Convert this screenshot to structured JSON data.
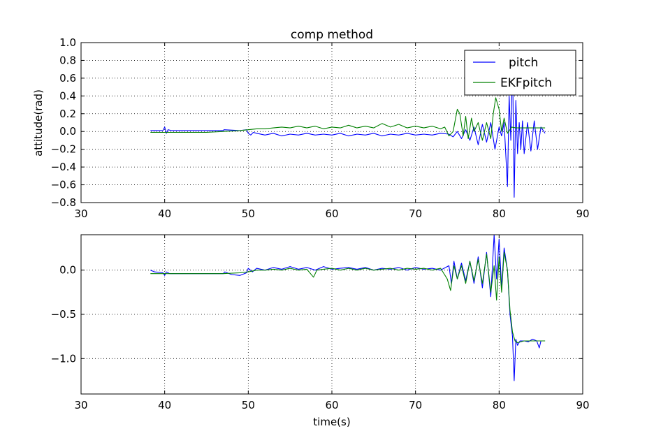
{
  "colors": {
    "pitch": "#0000ff",
    "ekf": "#008000",
    "grid": "#000000",
    "axes": "#000000"
  },
  "chart_data": [
    {
      "type": "line",
      "title": "comp method",
      "xlabel": "",
      "ylabel": "attitude(rad)",
      "xlim": [
        30,
        90
      ],
      "ylim": [
        -0.8,
        1.0
      ],
      "xticks": [
        30,
        40,
        50,
        60,
        70,
        80,
        90
      ],
      "xtick_labels": [
        "30",
        "40",
        "50",
        "60",
        "70",
        "80",
        "90"
      ],
      "yticks": [
        -0.8,
        -0.6,
        -0.4,
        -0.2,
        0.0,
        0.2,
        0.4,
        0.6,
        0.8,
        1.0
      ],
      "ytick_labels": [
        "−0.8",
        "−0.6",
        "−0.4",
        "−0.2",
        "0.0",
        "0.2",
        "0.4",
        "0.6",
        "0.8",
        "1.0"
      ],
      "grid": true,
      "legend": "top-right",
      "series": [
        {
          "name": "pitch",
          "color": "#0000ff",
          "x": [
            38.3,
            39.8,
            40.0,
            40.2,
            40.4,
            40.8,
            43.0,
            47.0,
            47.1,
            49.0,
            49.8,
            50.0,
            50.3,
            50.6,
            51.0,
            52.0,
            53.0,
            54.0,
            55.0,
            56.0,
            57.0,
            58.0,
            59.0,
            60.0,
            61.0,
            62.0,
            63.0,
            64.0,
            65.0,
            66.0,
            67.0,
            68.0,
            69.0,
            70.0,
            71.0,
            72.0,
            73.0,
            74.0,
            74.5,
            75.0,
            75.5,
            76.0,
            76.5,
            77.0,
            77.5,
            78.0,
            78.5,
            79.0,
            79.5,
            80.0,
            80.3,
            80.6,
            81.0,
            81.2,
            81.4,
            81.6,
            81.8,
            82.0,
            82.2,
            82.4,
            82.6,
            82.8,
            83.0,
            83.4,
            83.8,
            84.2,
            84.6,
            85.0,
            85.5
          ],
          "y": [
            0.01,
            0.01,
            0.05,
            -0.02,
            0.02,
            0.01,
            0.01,
            0.01,
            0.02,
            0.01,
            0.02,
            -0.02,
            -0.04,
            -0.01,
            -0.02,
            -0.04,
            -0.02,
            -0.05,
            -0.03,
            -0.04,
            -0.02,
            -0.04,
            -0.03,
            -0.04,
            -0.02,
            -0.05,
            -0.03,
            -0.04,
            -0.02,
            -0.05,
            -0.03,
            -0.04,
            -0.02,
            -0.04,
            -0.03,
            -0.04,
            -0.02,
            -0.03,
            -0.06,
            0.0,
            -0.08,
            0.02,
            -0.1,
            0.05,
            -0.15,
            0.08,
            -0.12,
            0.1,
            -0.2,
            0.05,
            -0.05,
            0.1,
            -0.62,
            0.4,
            -0.1,
            0.82,
            -0.74,
            0.35,
            -0.25,
            0.1,
            -0.2,
            0.12,
            -0.25,
            0.1,
            -0.22,
            0.12,
            -0.2,
            0.05,
            -0.02
          ]
        },
        {
          "name": "EKFpitch",
          "color": "#008000",
          "x": [
            38.3,
            40.0,
            45.0,
            47.0,
            49.0,
            50.0,
            51.0,
            52.0,
            53.0,
            54.0,
            55.0,
            56.0,
            57.0,
            58.0,
            59.0,
            60.0,
            61.0,
            62.0,
            63.0,
            64.0,
            65.0,
            66.0,
            67.0,
            68.0,
            69.0,
            70.0,
            71.0,
            72.0,
            73.0,
            73.5,
            74.0,
            74.5,
            75.0,
            75.3,
            75.7,
            76.0,
            76.3,
            76.7,
            77.0,
            77.5,
            78.0,
            78.5,
            79.0,
            79.3,
            79.6,
            80.0,
            80.3,
            80.6,
            81.0,
            81.5,
            82.0,
            83.0,
            84.0,
            85.0,
            85.5
          ],
          "y": [
            -0.01,
            -0.01,
            -0.01,
            0.0,
            0.01,
            0.02,
            0.03,
            0.03,
            0.04,
            0.05,
            0.04,
            0.06,
            0.04,
            0.06,
            0.03,
            0.05,
            0.04,
            0.07,
            0.04,
            0.06,
            0.04,
            0.09,
            0.05,
            0.08,
            0.04,
            0.06,
            0.04,
            0.06,
            0.03,
            0.05,
            -0.05,
            0.0,
            0.25,
            0.2,
            -0.05,
            0.17,
            -0.08,
            0.15,
            0.0,
            0.1,
            -0.1,
            0.1,
            -0.08,
            0.2,
            0.38,
            0.25,
            0.0,
            0.15,
            -0.02,
            0.05,
            0.04,
            0.04,
            0.04,
            0.04,
            0.04
          ]
        }
      ]
    },
    {
      "type": "line",
      "title": "",
      "xlabel": "time(s)",
      "ylabel": "",
      "xlim": [
        30,
        90
      ],
      "ylim": [
        -1.4,
        0.4
      ],
      "xticks": [
        30,
        40,
        50,
        60,
        70,
        80,
        90
      ],
      "xtick_labels": [
        "30",
        "40",
        "50",
        "60",
        "70",
        "80",
        "90"
      ],
      "yticks": [
        -1.0,
        -0.5,
        0.0
      ],
      "ytick_labels": [
        "−1.0",
        "−0.5",
        "0.0"
      ],
      "grid": true,
      "series": [
        {
          "color": "#0000ff",
          "x": [
            38.3,
            38.8,
            39.8,
            40.0,
            40.2,
            40.6,
            43.0,
            47.0,
            47.2,
            48.0,
            49.0,
            49.8,
            50.0,
            50.5,
            51.0,
            52.0,
            53.0,
            54.0,
            55.0,
            56.0,
            57.0,
            58.0,
            59.0,
            60.0,
            61.0,
            62.0,
            63.0,
            64.0,
            65.0,
            66.0,
            67.0,
            68.0,
            69.0,
            70.0,
            71.0,
            72.0,
            73.0,
            74.0,
            74.3,
            74.6,
            75.0,
            75.5,
            76.0,
            76.5,
            77.0,
            77.5,
            78.0,
            78.5,
            79.0,
            79.4,
            79.7,
            80.0,
            80.3,
            80.6,
            81.0,
            81.3,
            81.6,
            81.8,
            82.0,
            82.2,
            82.5,
            83.0,
            83.5,
            84.0,
            84.5,
            84.8,
            85.0,
            85.5
          ],
          "y": [
            0.0,
            -0.02,
            -0.03,
            -0.06,
            -0.02,
            -0.04,
            -0.04,
            -0.04,
            -0.02,
            -0.05,
            -0.06,
            -0.03,
            0.02,
            -0.02,
            0.02,
            0.0,
            0.03,
            0.01,
            0.04,
            0.01,
            0.03,
            0.0,
            0.04,
            0.01,
            0.02,
            0.03,
            0.01,
            0.03,
            0.0,
            0.02,
            0.01,
            0.03,
            0.0,
            0.03,
            0.01,
            0.02,
            0.0,
            0.05,
            -0.15,
            0.1,
            -0.1,
            0.08,
            -0.12,
            0.1,
            -0.15,
            0.15,
            -0.2,
            0.2,
            -0.3,
            0.4,
            -0.1,
            0.35,
            -0.2,
            0.25,
            0.0,
            -0.5,
            -0.75,
            -1.25,
            -0.78,
            -0.85,
            -0.8,
            -0.8,
            -0.81,
            -0.78,
            -0.8,
            -0.88,
            -0.8,
            -0.8
          ]
        },
        {
          "color": "#008000",
          "x": [
            38.3,
            40.0,
            45.0,
            47.0,
            49.0,
            50.0,
            51.0,
            52.0,
            53.0,
            54.0,
            55.0,
            56.0,
            57.0,
            57.8,
            58.2,
            59.0,
            60.0,
            61.0,
            62.0,
            63.0,
            64.0,
            65.0,
            66.0,
            67.0,
            68.0,
            69.0,
            70.0,
            71.0,
            72.0,
            73.0,
            73.8,
            74.2,
            74.6,
            75.0,
            75.5,
            76.0,
            76.5,
            77.0,
            77.5,
            78.0,
            78.5,
            79.0,
            79.4,
            79.7,
            80.0,
            80.3,
            80.6,
            81.0,
            81.3,
            81.6,
            81.9,
            82.2,
            83.0,
            84.0,
            85.0,
            85.5
          ],
          "y": [
            -0.04,
            -0.04,
            -0.04,
            -0.04,
            -0.03,
            -0.02,
            0.0,
            0.0,
            0.01,
            0.0,
            0.02,
            0.0,
            0.01,
            -0.08,
            0.0,
            0.01,
            0.02,
            0.0,
            0.02,
            0.0,
            0.02,
            0.0,
            0.01,
            0.02,
            0.0,
            0.02,
            0.01,
            0.02,
            0.0,
            0.02,
            -0.1,
            -0.23,
            0.05,
            -0.1,
            0.05,
            -0.15,
            0.1,
            -0.12,
            0.12,
            -0.15,
            0.18,
            -0.25,
            0.05,
            -0.34,
            0.15,
            -0.25,
            0.2,
            0.0,
            -0.45,
            -0.7,
            -0.8,
            -0.82,
            -0.8,
            -0.8,
            -0.8,
            -0.8
          ]
        }
      ]
    }
  ]
}
